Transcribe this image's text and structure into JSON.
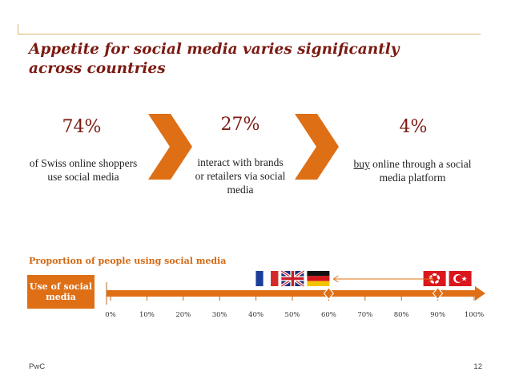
{
  "title": "Appetite for social media varies significantly\nacross countries",
  "stats": [
    {
      "value": "74%",
      "description": "of Swiss online shoppers use social media"
    },
    {
      "value": "27%",
      "description": "interact with brands or retailers via social media"
    },
    {
      "value": "4%",
      "description_underlined": "buy",
      "description_rest": " online through a social media platform"
    }
  ],
  "section_label": "Proportion of people using social media",
  "use_box_label": "Use of social media",
  "scale": {
    "ticks": [
      "0%",
      "10%",
      "20%",
      "30%",
      "40%",
      "50%",
      "60%",
      "70%",
      "80%",
      "90%",
      "100%"
    ],
    "markers": [
      60,
      90
    ],
    "range_arrow": [
      60,
      90
    ]
  },
  "flags": [
    {
      "country": "France",
      "position": 60
    },
    {
      "country": "United Kingdom",
      "position": 60
    },
    {
      "country": "Germany",
      "position": 60
    },
    {
      "country": "Hong Kong",
      "position": 90
    },
    {
      "country": "Turkey",
      "position": 90
    }
  ],
  "colors": {
    "accent": "#df6f15",
    "title": "#7b1a12",
    "rule": "#d9b36a"
  },
  "icons": [
    "chevron-right-icon",
    "chevron-right-icon"
  ],
  "footer": {
    "left": "PwC",
    "right": "12"
  }
}
